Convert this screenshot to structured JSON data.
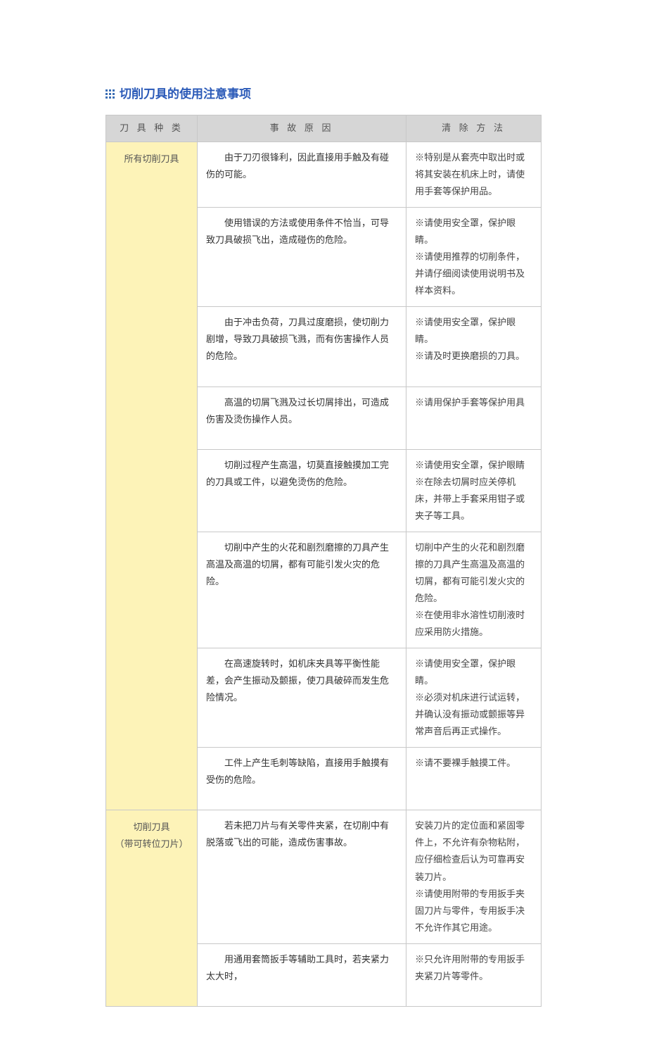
{
  "title": "切削刀具的使用注意事项",
  "icon_color": "#3d6fb5",
  "headers": {
    "col1": "刀 具 种 类",
    "col2": "事 故 原 因",
    "col3": "清 除 方 法"
  },
  "sections": [
    {
      "category": "所有切削刀具",
      "rows": [
        {
          "cause": "由于刀刃很锋利，因此直接用手触及有碰伤的可能。",
          "solution": "※特别是从套壳中取出时或将其安装在机床上时，请使用手套等保护用品。"
        },
        {
          "cause": "使用错误的方法或使用条件不恰当，可导致刀具破损飞出，造成碰伤的危险。",
          "solution": "※请使用安全罩，保护眼睛。\n※请使用推荐的切削条件，并请仔细阅读使用说明书及样本资料。"
        },
        {
          "cause": "由于冲击负荷，刀具过度磨损，使切削力剧增，导致刀具破损飞溅，而有伤害操作人员的危险。",
          "solution": "※请使用安全罩，保护眼睛。\n※请及时更换磨损的刀具。"
        },
        {
          "cause": "高温的切屑飞溅及过长切屑排出，可造成伤害及烫伤操作人员。",
          "solution": "※请用保护手套等保护用具"
        },
        {
          "cause": "切削过程产生高温，切莫直接触摸加工完的刀具或工件，以避免烫伤的危险。",
          "solution": "※请使用安全罩，保护眼睛\n※在除去切屑时应关停机床，并带上手套采用钳子或夹子等工具。"
        },
        {
          "cause": "切削中产生的火花和剧烈磨擦的刀具产生高温及高温的切屑，都有可能引发火灾的危险。",
          "solution": "切削中产生的火花和剧烈磨擦的刀具产生高温及高温的切屑，都有可能引发火灾的危险。\n※在使用非水溶性切削液时应采用防火措施。"
        },
        {
          "cause": "在高速旋转时，如机床夹具等平衡性能差，会产生振动及颤振，使刀具破碎而发生危险情况。",
          "solution": "※请使用安全罩，保护眼睛。\n※必须对机床进行试运转，并确认没有振动或颤振等异常声音后再正式操作。"
        },
        {
          "cause": "工件上产生毛刺等缺陷，直接用手触摸有受伤的危险。",
          "solution": "※请不要裸手触摸工件。"
        }
      ]
    },
    {
      "category": "切削刀具\n（带可转位刀片）",
      "rows": [
        {
          "cause": "若未把刀片与有关零件夹紧，在切削中有脱落或飞出的可能，造成伤害事故。",
          "solution": "安装刀片的定位面和紧固零件上，不允许有杂物粘附，应仔细检查后认为可靠再安装刀片。\n※请使用附带的专用扳手夹固刀片与零件，专用扳手决不允许作其它用途。"
        },
        {
          "cause": "用通用套筒扳手等辅助工具时，若夹紧力太大时，",
          "solution": "※只允许用附带的专用扳手夹紧刀片等零件。"
        }
      ]
    }
  ]
}
